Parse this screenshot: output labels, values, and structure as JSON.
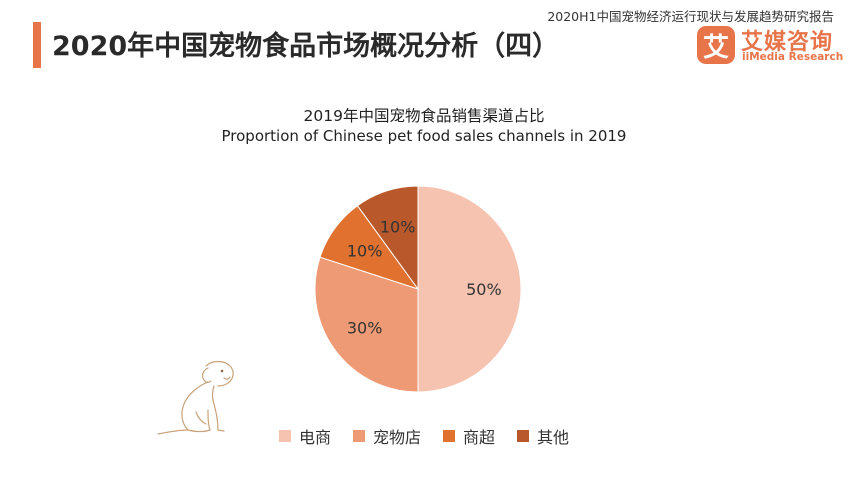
{
  "header": {
    "title": "2020年中国宠物食品市场概况分析（四）",
    "report_name": "2020H1中国宠物经济运行现状与发展趋势研究报告",
    "accent_color": "#e8744a"
  },
  "logo": {
    "mark_char": "艾",
    "name_cn": "艾媒咨询",
    "name_en": "iiMedia Research",
    "color": "#e8744a"
  },
  "chart_data": {
    "type": "pie",
    "title": "2019年中国宠物食品销售渠道占比",
    "subtitle": "Proportion of Chinese pet food sales channels in 2019",
    "categories": [
      "电商",
      "宠物店",
      "商超",
      "其他"
    ],
    "values": [
      50,
      30,
      10,
      10
    ],
    "labels": [
      "50%",
      "30%",
      "10%",
      "10%"
    ],
    "colors": [
      "#f6c3b1",
      "#ee9a74",
      "#e0712f",
      "#b9582b"
    ],
    "start_angle_deg": 0,
    "direction": "clockwise",
    "legend_position": "bottom"
  },
  "decoration": {
    "illustration_icon": "dog-sketch-icon"
  }
}
